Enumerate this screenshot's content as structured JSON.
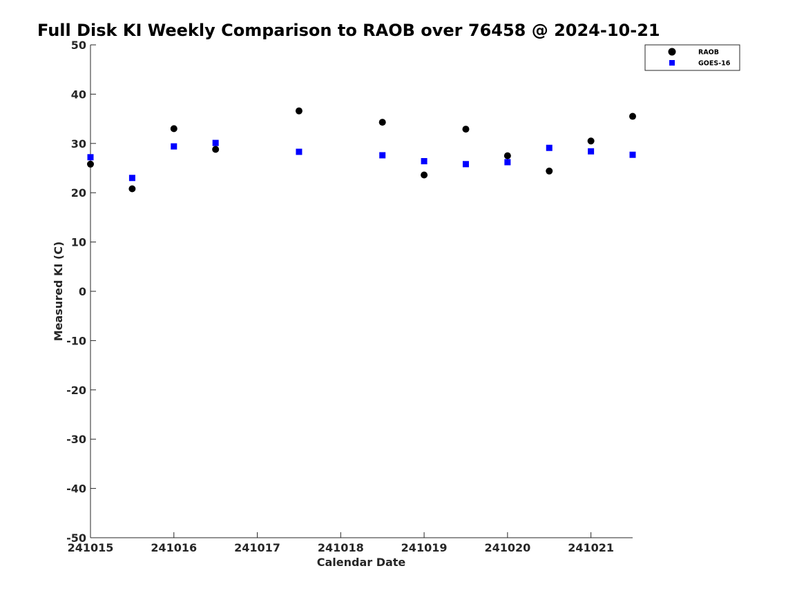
{
  "chart_data": {
    "type": "scatter",
    "title": "Full Disk KI Weekly Comparison to RAOB over 76458 @ 2024-10-21",
    "xlabel": "Calendar Date",
    "ylabel": "Measured KI (C)",
    "xlim": [
      "2024-10-15T00:00",
      "2024-10-21T12:00"
    ],
    "ylim": [
      -50,
      50
    ],
    "x_ticks": [
      {
        "value": "2024-10-15",
        "label": "241015"
      },
      {
        "value": "2024-10-16",
        "label": "241016"
      },
      {
        "value": "2024-10-17",
        "label": "241017"
      },
      {
        "value": "2024-10-18",
        "label": "241018"
      },
      {
        "value": "2024-10-19",
        "label": "241019"
      },
      {
        "value": "2024-10-20",
        "label": "241020"
      },
      {
        "value": "2024-10-21",
        "label": "241021"
      }
    ],
    "y_ticks": [
      50,
      40,
      30,
      20,
      10,
      0,
      -10,
      -20,
      -30,
      -40,
      -50
    ],
    "grid": false,
    "legend_position": "top-right",
    "series": [
      {
        "name": "RAOB",
        "marker": "circle",
        "color": "#000000",
        "points": [
          {
            "x": "2024-10-15T00:00",
            "y": 25.8
          },
          {
            "x": "2024-10-15T12:00",
            "y": 20.8
          },
          {
            "x": "2024-10-16T00:00",
            "y": 33.0
          },
          {
            "x": "2024-10-16T12:00",
            "y": 28.8
          },
          {
            "x": "2024-10-17T12:00",
            "y": 36.6
          },
          {
            "x": "2024-10-18T12:00",
            "y": 34.3
          },
          {
            "x": "2024-10-19T00:00",
            "y": 23.6
          },
          {
            "x": "2024-10-19T12:00",
            "y": 32.9
          },
          {
            "x": "2024-10-20T00:00",
            "y": 27.5
          },
          {
            "x": "2024-10-20T12:00",
            "y": 24.4
          },
          {
            "x": "2024-10-21T00:00",
            "y": 30.5
          },
          {
            "x": "2024-10-21T12:00",
            "y": 35.5
          }
        ]
      },
      {
        "name": "GOES-16",
        "marker": "square",
        "color": "#0000ff",
        "points": [
          {
            "x": "2024-10-15T00:00",
            "y": 27.2
          },
          {
            "x": "2024-10-15T12:00",
            "y": 23.0
          },
          {
            "x": "2024-10-16T00:00",
            "y": 29.4
          },
          {
            "x": "2024-10-16T12:00",
            "y": 30.1
          },
          {
            "x": "2024-10-17T12:00",
            "y": 28.3
          },
          {
            "x": "2024-10-18T12:00",
            "y": 27.6
          },
          {
            "x": "2024-10-19T00:00",
            "y": 26.4
          },
          {
            "x": "2024-10-19T12:00",
            "y": 25.8
          },
          {
            "x": "2024-10-20T00:00",
            "y": 26.2
          },
          {
            "x": "2024-10-20T12:00",
            "y": 29.1
          },
          {
            "x": "2024-10-21T00:00",
            "y": 28.4
          },
          {
            "x": "2024-10-21T12:00",
            "y": 27.7
          }
        ]
      }
    ]
  }
}
